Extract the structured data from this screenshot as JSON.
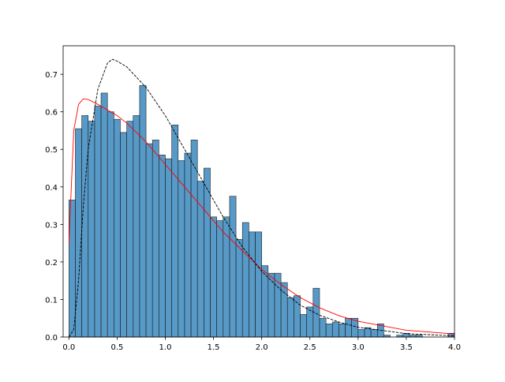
{
  "chart_data": {
    "type": "histogram",
    "bins": [
      0,
      0.0667,
      0.1333,
      0.2,
      0.2667,
      0.3333,
      0.4,
      0.4667,
      0.5333,
      0.6,
      0.6667,
      0.7333,
      0.8,
      0.8667,
      0.9333,
      1.0,
      1.0667,
      1.1333,
      1.2,
      1.2667,
      1.3333,
      1.4,
      1.4667,
      1.5333,
      1.6,
      1.6667,
      1.7333,
      1.8,
      1.8667,
      1.9333,
      2.0,
      2.0667,
      2.1333,
      2.2,
      2.2667,
      2.3333,
      2.4,
      2.4667,
      2.5333,
      2.6,
      2.6667,
      2.7333,
      2.8,
      2.8667,
      2.9333,
      3.0,
      3.0667,
      3.1333,
      3.2,
      3.2667,
      3.3333,
      3.4,
      3.4667,
      3.5333,
      3.6,
      3.6667,
      3.7333,
      3.8,
      3.8667,
      3.9333,
      4.0
    ],
    "values": [
      0.365,
      0.555,
      0.59,
      0.575,
      0.615,
      0.65,
      0.6,
      0.58,
      0.545,
      0.575,
      0.59,
      0.67,
      0.515,
      0.525,
      0.485,
      0.475,
      0.565,
      0.47,
      0.49,
      0.525,
      0.415,
      0.45,
      0.32,
      0.31,
      0.32,
      0.375,
      0.26,
      0.305,
      0.28,
      0.28,
      0.19,
      0.17,
      0.17,
      0.145,
      0.105,
      0.11,
      0.06,
      0.08,
      0.13,
      0.05,
      0.035,
      0.04,
      0.035,
      0.05,
      0.05,
      0.02,
      0.025,
      0.02,
      0.035,
      0.005,
      0,
      0.005,
      0.01,
      0.005,
      0.005,
      0,
      0,
      0,
      0,
      0.01
    ],
    "color": "#1f77b4",
    "series": [
      {
        "color": "#ff0000",
        "style": "solid",
        "x": [
          0,
          0.05,
          0.1,
          0.15,
          0.2,
          0.3,
          0.4,
          0.5,
          0.6,
          0.8,
          1.0,
          1.2,
          1.4,
          1.6,
          1.8,
          2.0,
          2.2,
          2.4,
          2.6,
          2.8,
          3.0,
          3.5,
          4.0
        ],
        "values": [
          0.25,
          0.55,
          0.62,
          0.635,
          0.633,
          0.62,
          0.605,
          0.59,
          0.57,
          0.52,
          0.46,
          0.4,
          0.34,
          0.28,
          0.23,
          0.18,
          0.14,
          0.105,
          0.078,
          0.057,
          0.042,
          0.018,
          0.008
        ]
      },
      {
        "color": "#000000",
        "style": "dashed",
        "x": [
          0,
          0.05,
          0.1,
          0.15,
          0.2,
          0.3,
          0.4,
          0.45,
          0.5,
          0.6,
          0.8,
          1.0,
          1.2,
          1.4,
          1.6,
          1.8,
          2.0,
          2.2,
          2.4,
          2.6,
          2.8,
          3.0,
          3.5,
          4.0
        ],
        "values": [
          0,
          0.02,
          0.15,
          0.35,
          0.5,
          0.66,
          0.73,
          0.74,
          0.735,
          0.72,
          0.665,
          0.59,
          0.5,
          0.41,
          0.32,
          0.24,
          0.175,
          0.125,
          0.085,
          0.058,
          0.04,
          0.026,
          0.009,
          0.003
        ]
      }
    ],
    "xlim": [
      -0.06,
      4.0
    ],
    "ylim": [
      0,
      0.776
    ],
    "xticks": [
      {
        "value": 0,
        "label": "0.0"
      },
      {
        "value": 0.5,
        "label": "0.5"
      },
      {
        "value": 1,
        "label": "1.0"
      },
      {
        "value": 1.5,
        "label": "1.5"
      },
      {
        "value": 2,
        "label": "2.0"
      },
      {
        "value": 2.5,
        "label": "2.5"
      },
      {
        "value": 3,
        "label": "3.0"
      },
      {
        "value": 3.5,
        "label": "3.5"
      },
      {
        "value": 4,
        "label": "4.0"
      }
    ],
    "yticks": [
      {
        "value": 0,
        "label": "0.0"
      },
      0.1,
      0.2,
      0.3,
      0.4,
      0.5,
      0.6,
      0.7
    ]
  }
}
